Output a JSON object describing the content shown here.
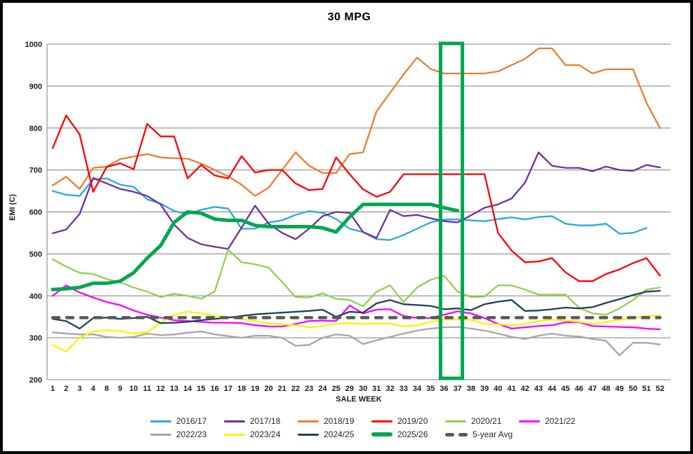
{
  "chart_data": {
    "type": "line",
    "title": "30 MPG",
    "xlabel": "SALE WEEK",
    "ylabel": "EMI (C)",
    "ylim": [
      200,
      1000
    ],
    "ytick_interval": 100,
    "yticks": [
      200,
      300,
      400,
      500,
      600,
      700,
      800,
      900,
      1000
    ],
    "grid": "horizontal",
    "legend_position": "bottom",
    "legend_rows": [
      6,
      5
    ],
    "categories": [
      1,
      2,
      3,
      4,
      8,
      9,
      10,
      11,
      12,
      13,
      14,
      15,
      16,
      17,
      18,
      19,
      20,
      21,
      22,
      23,
      24,
      25,
      29,
      30,
      31,
      32,
      33,
      34,
      35,
      36,
      37,
      38,
      39,
      40,
      41,
      42,
      43,
      44,
      45,
      46,
      47,
      48,
      49,
      50,
      51,
      52
    ],
    "series": [
      {
        "name": "2016/17",
        "color": "#29A8DC",
        "width": 2.3,
        "values": [
          650,
          641,
          638,
          678,
          680,
          665,
          660,
          630,
          620,
          602,
          595,
          605,
          612,
          608,
          560,
          560,
          575,
          580,
          593,
          602,
          598,
          583,
          560,
          552,
          535,
          533,
          545,
          560,
          575,
          582,
          582,
          580,
          578,
          583,
          587,
          582,
          588,
          590,
          572,
          568,
          568,
          572,
          548,
          550,
          562,
          null
        ]
      },
      {
        "name": "2017/18",
        "color": "#7030A0",
        "width": 2.3,
        "values": [
          549,
          558,
          595,
          681,
          668,
          655,
          648,
          638,
          618,
          570,
          538,
          523,
          517,
          512,
          563,
          615,
          572,
          550,
          535,
          560,
          590,
          600,
          598,
          552,
          538,
          605,
          590,
          593,
          585,
          578,
          575,
          592,
          610,
          618,
          632,
          670,
          742,
          710,
          705,
          705,
          697,
          708,
          700,
          698,
          712,
          706
        ]
      },
      {
        "name": "2018/19",
        "color": "#ED7D31",
        "width": 2.3,
        "values": [
          663,
          684,
          655,
          705,
          708,
          726,
          732,
          738,
          730,
          728,
          727,
          715,
          700,
          685,
          665,
          638,
          658,
          700,
          742,
          710,
          693,
          693,
          738,
          742,
          840,
          884,
          928,
          968,
          941,
          930,
          930,
          930,
          930,
          935,
          950,
          965,
          990,
          990,
          950,
          950,
          930,
          940,
          940,
          940,
          860,
          800
        ]
      },
      {
        "name": "2019/20",
        "color": "#FF0000",
        "width": 2.3,
        "values": [
          752,
          830,
          785,
          648,
          707,
          716,
          702,
          810,
          780,
          780,
          680,
          712,
          687,
          680,
          733,
          694,
          700,
          700,
          668,
          652,
          655,
          730,
          690,
          654,
          636,
          648,
          690,
          690,
          690,
          690,
          690,
          690,
          690,
          550,
          508,
          480,
          482,
          490,
          456,
          435,
          435,
          452,
          463,
          478,
          490,
          448
        ]
      },
      {
        "name": "2020/21",
        "color": "#92D050",
        "width": 2.3,
        "values": [
          487,
          470,
          455,
          452,
          440,
          432,
          420,
          410,
          397,
          405,
          400,
          393,
          410,
          510,
          480,
          475,
          467,
          433,
          397,
          396,
          406,
          393,
          390,
          375,
          410,
          425,
          385,
          420,
          438,
          448,
          410,
          397,
          398,
          425,
          425,
          415,
          403,
          403,
          403,
          372,
          358,
          355,
          370,
          390,
          415,
          420
        ]
      },
      {
        "name": "2021/22",
        "color": "#FF00FF",
        "width": 2.3,
        "values": [
          400,
          425,
          408,
          396,
          385,
          378,
          365,
          355,
          348,
          342,
          340,
          338,
          336,
          336,
          335,
          330,
          327,
          327,
          333,
          340,
          341,
          340,
          377,
          358,
          367,
          368,
          352,
          347,
          347,
          355,
          363,
          358,
          347,
          333,
          322,
          325,
          328,
          330,
          337,
          337,
          328,
          327,
          326,
          325,
          322,
          320
        ]
      },
      {
        "name": "2022/23",
        "color": "#A6A6A6",
        "width": 2.3,
        "values": [
          313,
          310,
          308,
          308,
          302,
          300,
          302,
          310,
          306,
          308,
          312,
          315,
          308,
          304,
          300,
          305,
          305,
          300,
          281,
          283,
          300,
          308,
          305,
          285,
          294,
          302,
          310,
          317,
          322,
          325,
          326,
          322,
          317,
          310,
          302,
          297,
          305,
          310,
          305,
          303,
          297,
          293,
          258,
          288,
          288,
          284
        ]
      },
      {
        "name": "2023/24",
        "color": "#FFF200",
        "width": 2.3,
        "values": [
          283,
          267,
          300,
          315,
          318,
          316,
          310,
          313,
          335,
          355,
          362,
          358,
          352,
          350,
          345,
          340,
          335,
          332,
          330,
          325,
          328,
          333,
          335,
          333,
          334,
          334,
          327,
          330,
          338,
          343,
          344,
          343,
          333,
          332,
          330,
          333,
          340,
          343,
          342,
          338,
          333,
          338,
          343,
          347,
          352,
          353
        ]
      },
      {
        "name": "2024/25",
        "color": "#1F4257",
        "width": 2.3,
        "values": [
          345,
          340,
          322,
          347,
          348,
          345,
          347,
          350,
          335,
          336,
          338,
          342,
          345,
          348,
          352,
          356,
          358,
          360,
          362,
          364,
          367,
          350,
          362,
          360,
          382,
          390,
          380,
          378,
          376,
          368,
          370,
          366,
          380,
          386,
          390,
          364,
          365,
          368,
          372,
          370,
          373,
          383,
          392,
          402,
          410,
          412
        ]
      },
      {
        "name": "2025/26",
        "color": "#00A64F",
        "width": 5,
        "values": [
          415,
          417,
          420,
          430,
          430,
          435,
          455,
          490,
          520,
          575,
          600,
          597,
          583,
          580,
          580,
          568,
          565,
          565,
          565,
          565,
          562,
          552,
          588,
          618,
          618,
          618,
          618,
          618,
          618,
          610,
          603,
          null,
          null,
          null,
          null,
          null,
          null,
          null,
          null,
          null,
          null,
          null,
          null,
          null,
          null,
          null
        ]
      },
      {
        "name": "5-year Avg",
        "color": "#595959",
        "width": 4.5,
        "dashed": true,
        "values": [
          348,
          348,
          348,
          348,
          348,
          348,
          348,
          348,
          348,
          348,
          348,
          348,
          348,
          348,
          348,
          348,
          348,
          348,
          348,
          348,
          348,
          348,
          348,
          348,
          348,
          348,
          348,
          348,
          348,
          348,
          348,
          348,
          348,
          348,
          348,
          348,
          348,
          348,
          348,
          348,
          348,
          348,
          348,
          348,
          348,
          348
        ]
      }
    ],
    "highlight_box": {
      "from_week": 36,
      "to_week": 37,
      "color": "#00A64F",
      "stroke_width": 5,
      "spans_full_y_range": true
    }
  }
}
